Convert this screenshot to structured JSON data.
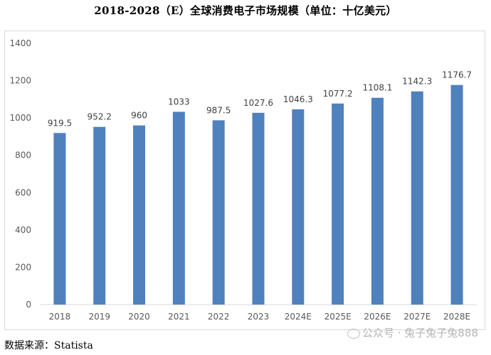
{
  "chart_data": {
    "type": "bar",
    "title": "2018-2028（E）全球消费电子市场规模（单位：十亿美元）",
    "categories": [
      "2018",
      "2019",
      "2020",
      "2021",
      "2022",
      "2023",
      "2024E",
      "2025E",
      "2026E",
      "2027E",
      "2028E"
    ],
    "values": [
      919.5,
      952.2,
      960,
      1033,
      987.5,
      1027.6,
      1046.3,
      1077.2,
      1108.1,
      1142.3,
      1176.7
    ],
    "value_labels": [
      "919.5",
      "952.2",
      "960",
      "1033",
      "987.5",
      "1027.6",
      "1046.3",
      "1077.2",
      "1108.1",
      "1142.3",
      "1176.7"
    ],
    "ylim": [
      0,
      1400
    ],
    "yticks": [
      0,
      200,
      400,
      600,
      800,
      1000,
      1200,
      1400
    ],
    "grid": false,
    "bar_color": "#4f81bd",
    "xlabel": "",
    "ylabel": ""
  },
  "source_text": "数据来源：Statista",
  "watermark_text": "公众号 · 兔子兔子兔888"
}
